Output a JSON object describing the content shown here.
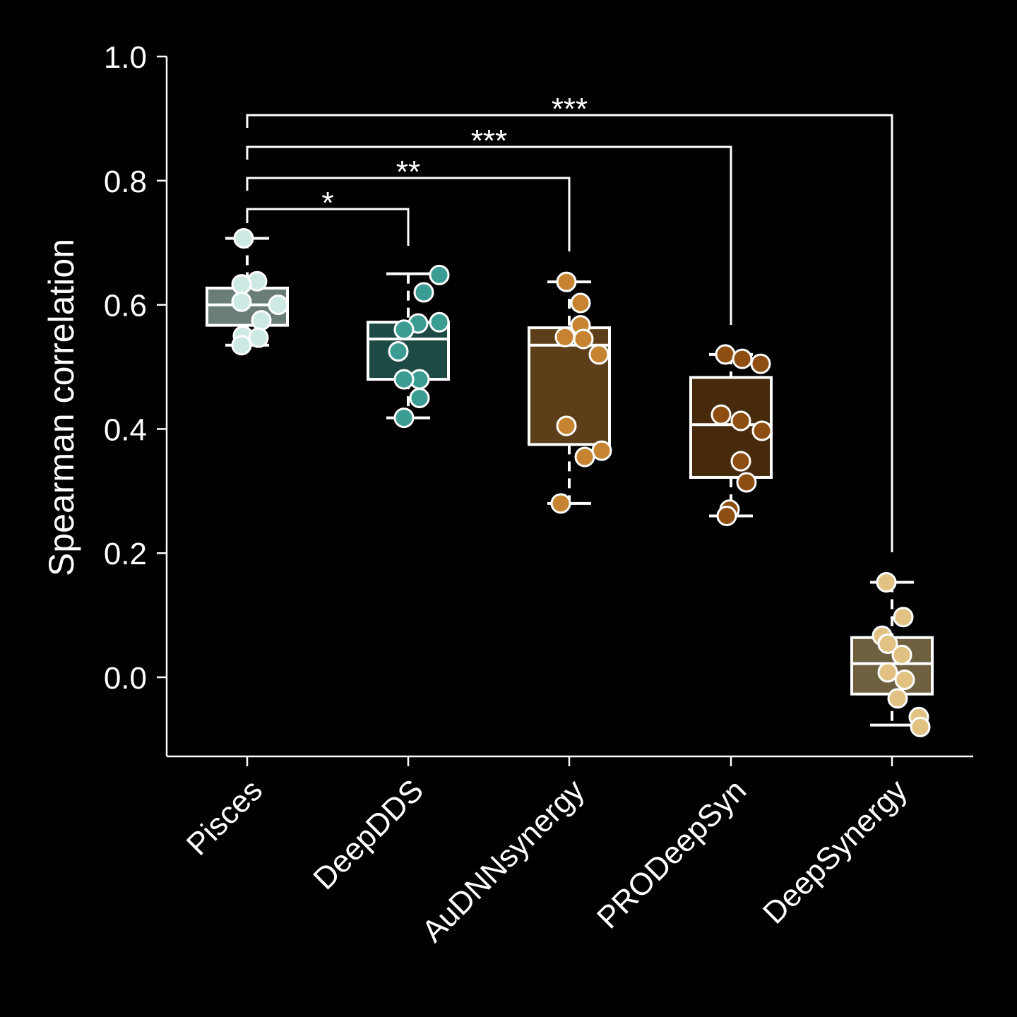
{
  "chart_data": {
    "type": "box",
    "title": "",
    "xlabel": "",
    "ylabel": "Spearman correlation",
    "ylim": [
      -0.13,
      1.0
    ],
    "yticks": [
      "1.0",
      "0.8",
      "0.6",
      "0.4",
      "0.2",
      "0.0"
    ],
    "ytick_values": [
      1.0,
      0.8,
      0.6,
      0.4,
      0.2,
      0.0
    ],
    "categories": [
      "Pisces",
      "DeepDDS",
      "AuDNNsynergy",
      "PRODeepSyn",
      "DeepSynergy"
    ],
    "series": [
      {
        "category": "Pisces",
        "box_color": "#6a7d79",
        "point_color": "#cde9e3",
        "q1": 0.567,
        "median": 0.6,
        "q3": 0.627,
        "whisker_low": 0.535,
        "whisker_high": 0.707,
        "points": [
          0.707,
          0.638,
          0.633,
          0.605,
          0.6,
          0.575,
          0.55,
          0.547,
          0.535
        ]
      },
      {
        "category": "DeepDDS",
        "box_color": "#1d4a44",
        "point_color": "#3a9c92",
        "q1": 0.48,
        "median": 0.545,
        "q3": 0.572,
        "whisker_low": 0.418,
        "whisker_high": 0.65,
        "points": [
          0.648,
          0.62,
          0.572,
          0.57,
          0.56,
          0.525,
          0.48,
          0.48,
          0.45,
          0.418
        ]
      },
      {
        "category": "AuDNNsynergy",
        "box_color": "#5c3f18",
        "point_color": "#c68433",
        "q1": 0.375,
        "median": 0.535,
        "q3": 0.563,
        "whisker_low": 0.28,
        "whisker_high": 0.637,
        "points": [
          0.637,
          0.603,
          0.567,
          0.548,
          0.545,
          0.52,
          0.405,
          0.365,
          0.355,
          0.28
        ]
      },
      {
        "category": "PRODeepSyn",
        "box_color": "#472a0c",
        "point_color": "#8e4e12",
        "q1": 0.322,
        "median": 0.407,
        "q3": 0.483,
        "whisker_low": 0.26,
        "whisker_high": 0.52,
        "points": [
          0.52,
          0.513,
          0.505,
          0.423,
          0.413,
          0.397,
          0.348,
          0.314,
          0.27,
          0.26
        ]
      },
      {
        "category": "DeepSynergy",
        "box_color": "#6f6040",
        "point_color": "#e1c283",
        "q1": -0.027,
        "median": 0.022,
        "q3": 0.064,
        "whisker_low": -0.077,
        "whisker_high": 0.153,
        "points": [
          0.153,
          0.097,
          0.067,
          0.054,
          0.036,
          0.008,
          -0.004,
          -0.034,
          -0.064,
          -0.08
        ]
      }
    ],
    "significance": [
      {
        "from": "Pisces",
        "to": "DeepDDS",
        "label": "*"
      },
      {
        "from": "Pisces",
        "to": "AuDNNsynergy",
        "label": "**"
      },
      {
        "from": "Pisces",
        "to": "PRODeepSyn",
        "label": "***"
      },
      {
        "from": "Pisces",
        "to": "DeepSynergy",
        "label": "***"
      }
    ],
    "grid": false,
    "legend": "none"
  }
}
